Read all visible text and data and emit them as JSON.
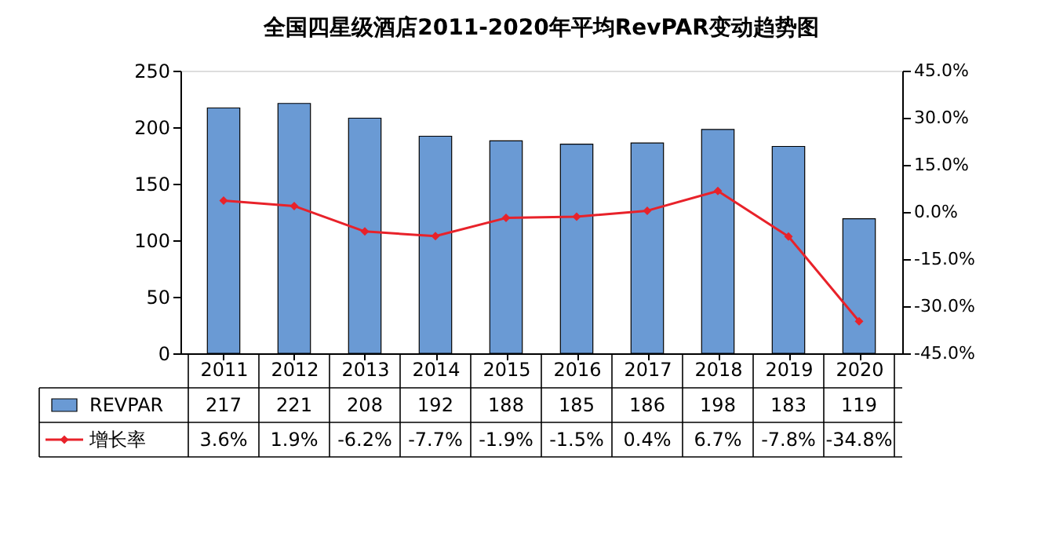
{
  "chart_data": {
    "type": "bar",
    "title": "全国四星级酒店2011-2020年平均RevPAR变动趋势图",
    "categories": [
      "2011",
      "2012",
      "2013",
      "2014",
      "2015",
      "2016",
      "2017",
      "2018",
      "2019",
      "2020"
    ],
    "series": [
      {
        "name": "REVPAR",
        "color": "#6a9ad4",
        "values": [
          217,
          221,
          208,
          192,
          188,
          185,
          186,
          198,
          183,
          119
        ],
        "value_labels": [
          "217",
          "221",
          "208",
          "192",
          "188",
          "185",
          "186",
          "198",
          "183",
          "119"
        ]
      },
      {
        "name": "增长率",
        "type": "line",
        "axis": "y2",
        "color": "#e8222a",
        "marker": "diamond",
        "values": [
          3.6,
          1.9,
          -6.2,
          -7.7,
          -1.9,
          -1.5,
          0.4,
          6.7,
          -7.8,
          -34.8
        ],
        "value_labels": [
          "3.6%",
          "1.9%",
          "-6.2%",
          "-7.7%",
          "-1.9%",
          "-1.5%",
          "0.4%",
          "6.7%",
          "-7.8%",
          "-34.8%"
        ]
      }
    ],
    "ylim": [
      0,
      250
    ],
    "yticks": [
      0,
      50,
      100,
      150,
      200,
      250
    ],
    "y2lim": [
      -45,
      45
    ],
    "y2ticks": [
      {
        "value": -45,
        "label": "-45.0%"
      },
      {
        "value": -30,
        "label": "-30.0%"
      },
      {
        "value": -15,
        "label": "-15.0%"
      },
      {
        "value": 0,
        "label": "0.0%"
      },
      {
        "value": 15,
        "label": "15.0%"
      },
      {
        "value": 30,
        "label": "30.0%"
      },
      {
        "value": 45,
        "label": "45.0%"
      }
    ],
    "grid": false,
    "legend": "bottom"
  }
}
